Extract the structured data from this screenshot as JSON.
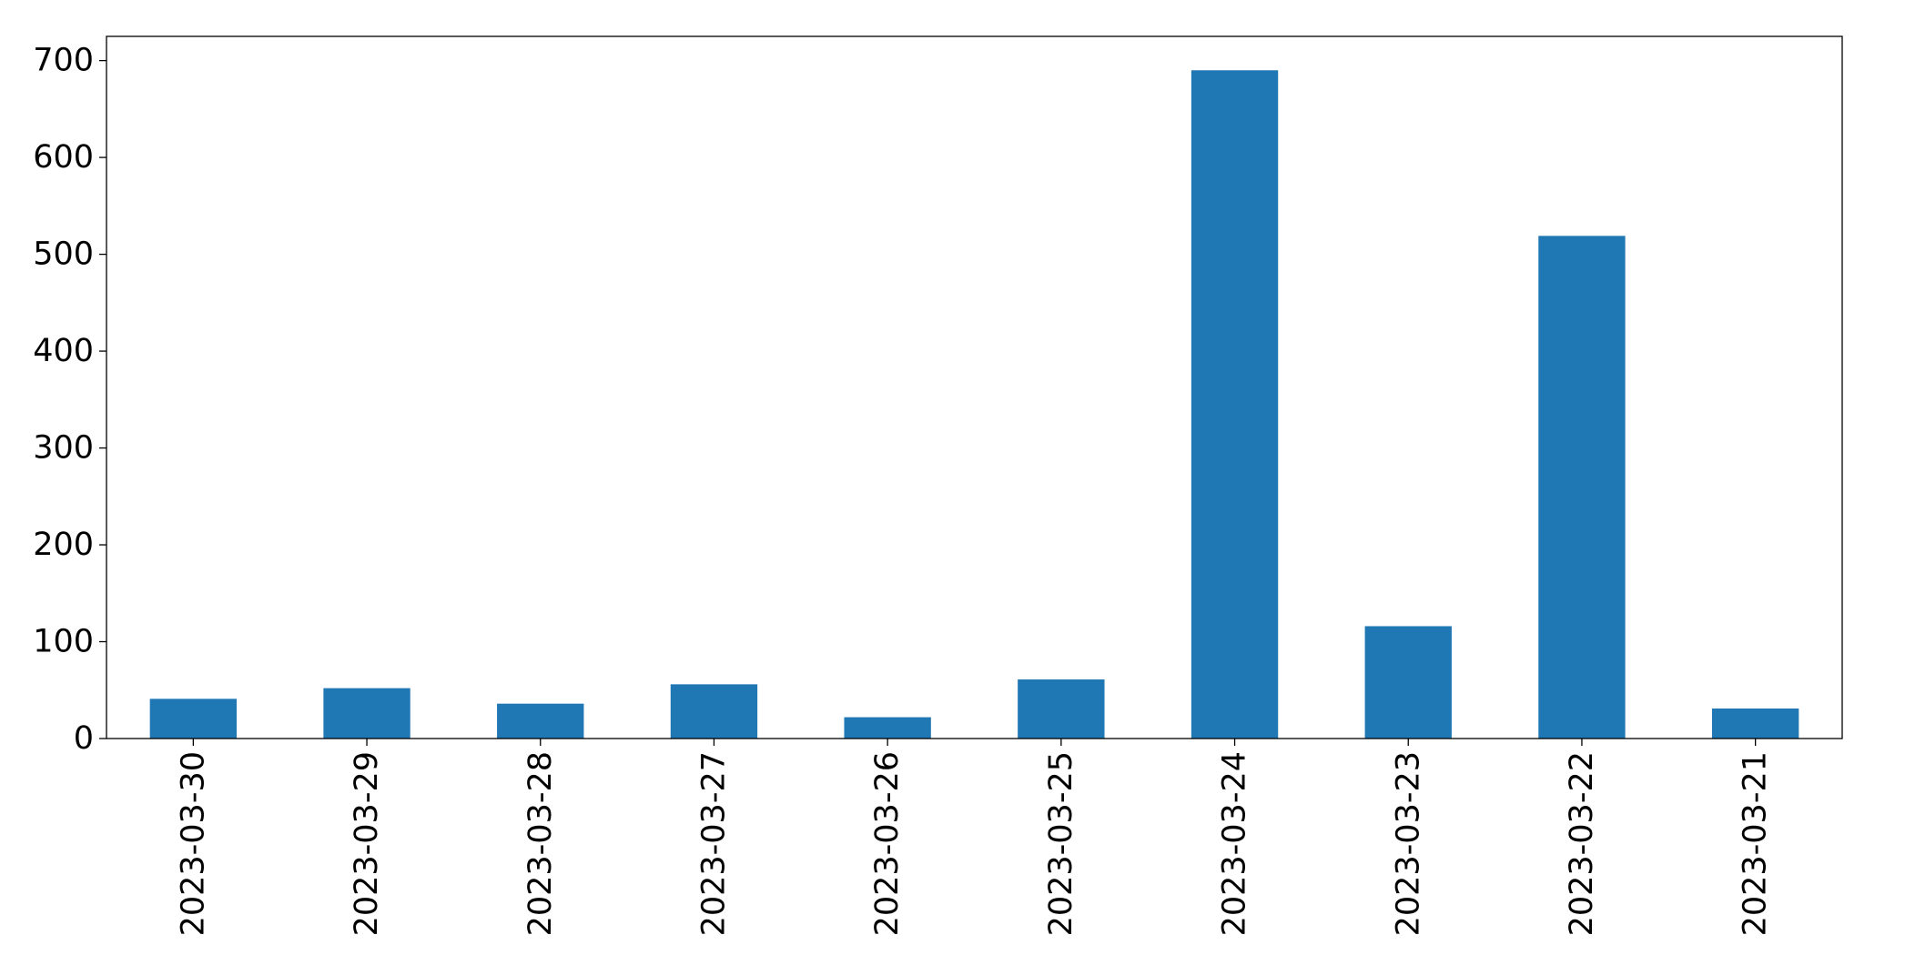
{
  "chart_data": {
    "type": "bar",
    "title": "",
    "xlabel": "",
    "ylabel": "",
    "categories": [
      "2023-03-30",
      "2023-03-29",
      "2023-03-28",
      "2023-03-27",
      "2023-03-26",
      "2023-03-25",
      "2023-03-24",
      "2023-03-23",
      "2023-03-22",
      "2023-03-21"
    ],
    "values": [
      41,
      52,
      36,
      56,
      22,
      61,
      690,
      116,
      519,
      31
    ],
    "ylim": [
      0,
      725
    ],
    "yticks": [
      0,
      100,
      200,
      300,
      400,
      500,
      600,
      700
    ],
    "grid": false,
    "legend": "none",
    "colors": {
      "bar": "#1f77b4"
    }
  }
}
